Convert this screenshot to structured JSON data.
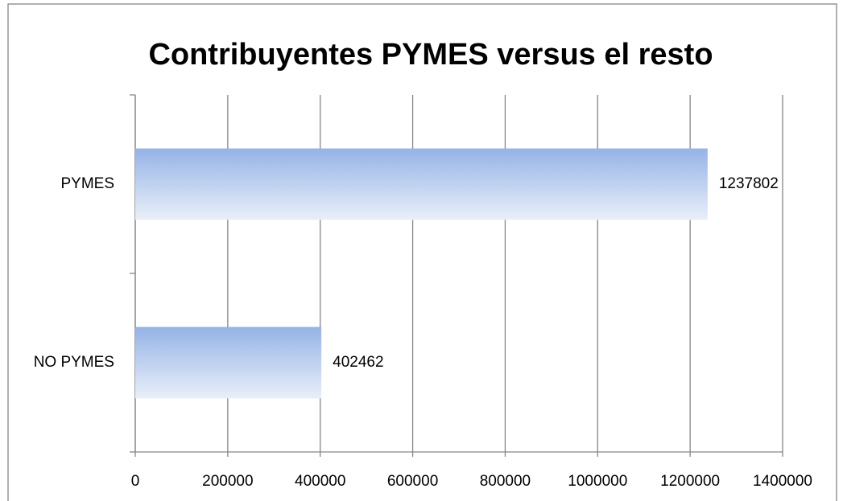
{
  "chart_data": {
    "type": "bar",
    "orientation": "horizontal",
    "title": "Contribuyentes PYMES versus el resto",
    "categories": [
      "PYMES",
      "NO PYMES"
    ],
    "values": [
      1237802,
      402462
    ],
    "xlim": [
      0,
      1400000
    ],
    "xticks": [
      0,
      200000,
      400000,
      600000,
      800000,
      1000000,
      1200000,
      1400000
    ],
    "grid": true
  }
}
